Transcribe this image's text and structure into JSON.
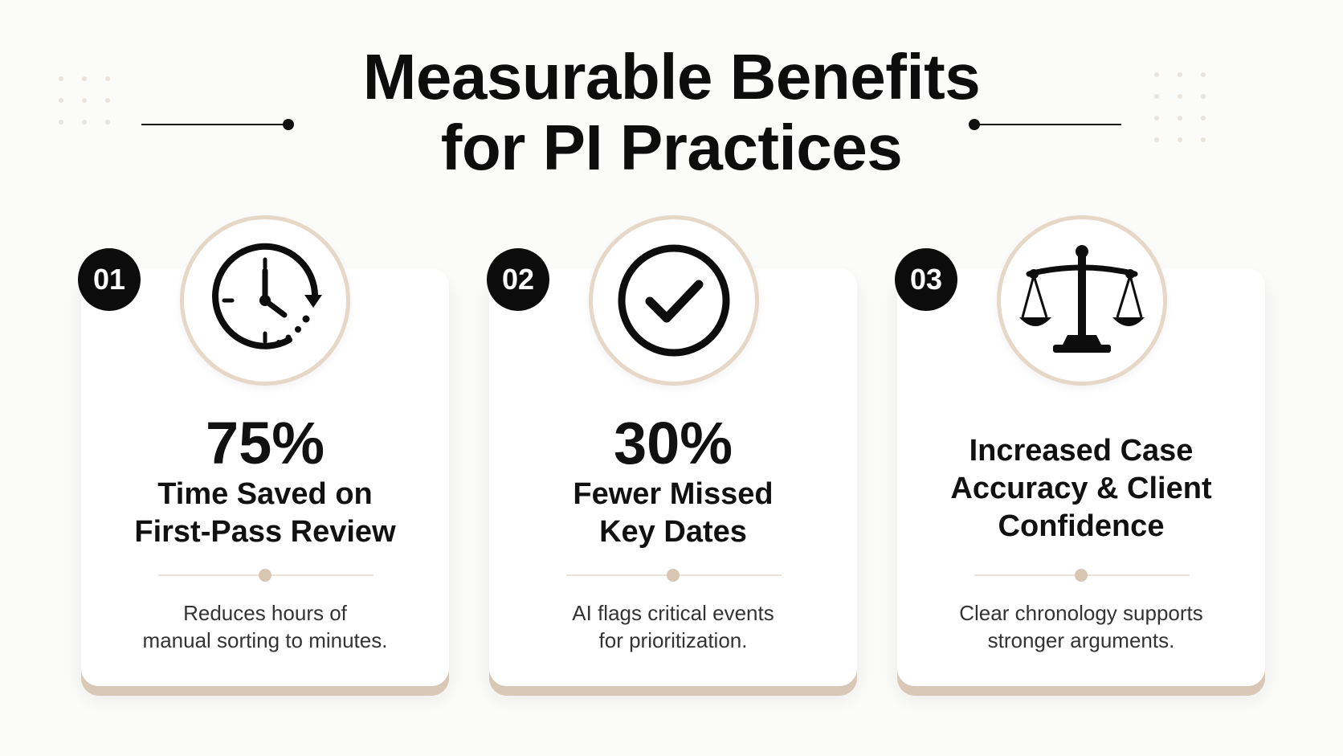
{
  "header": {
    "title_line1": "Measurable Benefits",
    "title_line2": "for PI Practices"
  },
  "colors": {
    "accent": "#d8c8b5",
    "badge": "#0c0c0c",
    "text": "#111111",
    "background": "#fbfbfa"
  },
  "cards": [
    {
      "badge": "01",
      "icon": "clock-icon",
      "stat": "75%",
      "label_line1": "Time Saved on",
      "label_line2": "First-Pass Review",
      "desc_line1": "Reduces hours of",
      "desc_line2": "manual sorting to minutes."
    },
    {
      "badge": "02",
      "icon": "checkmark-circle-icon",
      "stat": "30%",
      "label_line1": "Fewer Missed",
      "label_line2": "Key Dates",
      "desc_line1": "AI flags critical events",
      "desc_line2": "for prioritization."
    },
    {
      "badge": "03",
      "icon": "scales-of-justice-icon",
      "label_line1": "Increased Case",
      "label_line2": "Accuracy & Client",
      "label_line3": "Confidence",
      "desc_line1": "Clear chronology supports",
      "desc_line2": "stronger arguments."
    }
  ]
}
